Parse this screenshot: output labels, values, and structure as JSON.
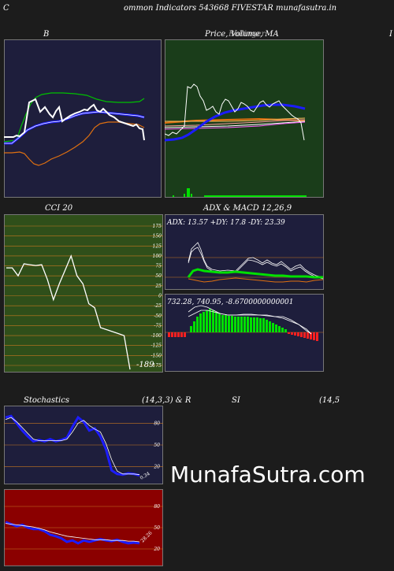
{
  "header": {
    "left_char": "C",
    "title": "ommon  Indicators 543668 FIVESTAR munafasutra.in"
  },
  "labels": {
    "b": "B",
    "price": "Price,  Volume,  MA",
    "price_overlap": "Bollinger",
    "right_edge": "I",
    "cci": "CCI 20",
    "adx": "ADX  & MACD 12,26,9",
    "adx_values": "ADX: 13.57  +DY: 17.8  -DY: 23.39",
    "macd_values": "732.28,  740.95,  -8.6700000000001",
    "stoch_left": "Stochastics",
    "stoch_params": "(14,3,3) & R",
    "si": "SI",
    "si_params": "(14,5",
    "cci_value": "-189",
    "stoch_value": "0.34",
    "rsi_value": "28.26"
  },
  "watermark": "MunafaSutra.com",
  "colors": {
    "bg": "#1c1c1c",
    "navy": "#1e1e3c",
    "green": "#1a3d1a",
    "olive": "#2f4f1a",
    "maroon": "#8b0000",
    "grid": "#c87820",
    "white": "#ffffff",
    "blue": "#1c1cff",
    "lime": "#00e000",
    "orange": "#e07010"
  },
  "chart_data": [
    {
      "type": "line",
      "title": "B",
      "series": [
        {
          "values": [
            8,
            8,
            8,
            7.2,
            6.8,
            6.0,
            5.2,
            4.8,
            4.5,
            4.0,
            4.4,
            4.7,
            4.3,
            4.1,
            4.0,
            3.9,
            3.7,
            3.3,
            3.2,
            3.0,
            3.1,
            3.3,
            3.5,
            3.6,
            4.0,
            4.3,
            4.0,
            4.4,
            4.6,
            4.5,
            4.7,
            4.8,
            4.8,
            5.1,
            5.3,
            5.6,
            6.0,
            6.3
          ]
        },
        {
          "values": [
            8,
            8,
            8,
            7.2,
            6.8,
            6.0,
            5.2,
            4.8,
            4.5,
            4.0,
            4.4,
            4.7,
            4.3,
            4.1,
            4.0,
            3.9,
            3.7,
            3.3,
            3.2,
            3.0,
            3.1,
            3.3,
            3.5,
            3.6,
            4.0,
            4.3,
            4.0,
            4.4,
            4.6,
            4.5,
            4.7,
            4.8,
            4.8,
            5.1,
            5.3,
            5.6,
            6.0,
            6.3
          ]
        },
        {
          "values": [
            7.2,
            7.3,
            7.3,
            6.2,
            5.2,
            4.2,
            3.2,
            2.6,
            2.4,
            2.2,
            2.0,
            1.9,
            2.0,
            2.1,
            2.2,
            2.3,
            2.4,
            2.6,
            2.7,
            2.8,
            2.8,
            2.9,
            3.0,
            3.0,
            3.0,
            2.9,
            2.9,
            2.8,
            2.8,
            2.8,
            2.8,
            2.8,
            2.8,
            2.7,
            2.7,
            2.6,
            2.6,
            2.5
          ]
        }
      ]
    },
    {
      "type": "line",
      "title": "Price,  Volume,  MA",
      "series": [
        {
          "values": [
            7.0,
            7.2,
            6.8,
            6.5,
            6.3,
            5.9,
            5.6,
            5.3,
            5.1,
            2.0,
            2.1,
            2.0,
            3.3,
            2.8,
            3.4,
            2.5,
            3.1,
            3.2,
            3.3,
            3.0,
            3.3,
            3.8,
            3.4,
            4.5,
            4.1,
            3.8,
            4.4,
            4.4,
            4.6,
            4.4,
            4.0,
            3.8,
            3.6,
            5.6
          ]
        },
        {
          "values": [
            5.6,
            5.6,
            5.6,
            5.5,
            5.5,
            5.5,
            5.4,
            5.4,
            5.4,
            5.3,
            5.3,
            5.3,
            5.2,
            5.2,
            5.2,
            5.1,
            5.1,
            5.0,
            5.0,
            5.0,
            4.9,
            4.9,
            4.9,
            4.8,
            4.8,
            4.8,
            4.7,
            4.7,
            4.7,
            4.6,
            4.6,
            4.6,
            4.5,
            4.5
          ]
        }
      ]
    },
    {
      "type": "line",
      "title": "CCI 20",
      "ylim": [
        -175,
        175
      ],
      "y_ticks": [
        175,
        150,
        125,
        100,
        75,
        50,
        25,
        0,
        -25,
        -50,
        -75,
        -100,
        -125,
        -150,
        -175
      ],
      "series": [
        {
          "values": [
            70,
            70,
            50,
            80,
            78,
            76,
            78,
            40,
            -10,
            30,
            65,
            100,
            50,
            30,
            -20,
            -30,
            -80,
            -85,
            -90,
            -95,
            -100,
            -185
          ]
        }
      ]
    },
    {
      "type": "line",
      "title": "ADX  & MACD 12,26,9",
      "series": [
        {
          "name": "ADX",
          "values": [
            13,
            14,
            14,
            15,
            14,
            14,
            14,
            14,
            13,
            13.57
          ]
        },
        {
          "name": "+DY",
          "values": [
            17,
            17,
            20,
            18,
            17,
            18,
            17,
            18,
            17,
            17.8
          ]
        },
        {
          "name": "-DY",
          "values": [
            23,
            22,
            21,
            22,
            23,
            22,
            24,
            22,
            23,
            23.39
          ]
        },
        {
          "name": "MACD",
          "values": [
            732.28
          ]
        },
        {
          "name": "Signal",
          "values": [
            740.95
          ]
        },
        {
          "name": "Histogram",
          "values": [
            -8.67
          ]
        }
      ]
    },
    {
      "type": "line",
      "title": "Stochastics",
      "ylim": [
        0,
        100
      ],
      "y_ticks": [
        80,
        50,
        20
      ],
      "series": [
        {
          "values": [
            88,
            90,
            80,
            70,
            62,
            55,
            57,
            55,
            58,
            55,
            57,
            60,
            75,
            88,
            82,
            70,
            73,
            62,
            44,
            15,
            10,
            9,
            11,
            10,
            8
          ]
        },
        {
          "values": [
            85,
            88,
            82,
            74,
            66,
            58,
            56,
            56,
            56,
            56,
            56,
            58,
            68,
            80,
            84,
            77,
            72,
            68,
            52,
            30,
            14,
            10,
            10,
            10,
            9
          ]
        }
      ]
    },
    {
      "type": "line",
      "title": "SI",
      "ylim": [
        0,
        100
      ],
      "y_ticks": [
        80,
        50,
        20
      ],
      "series": [
        {
          "values": [
            58,
            55,
            52,
            54,
            50,
            48,
            48,
            45,
            40,
            38,
            35,
            30,
            32,
            28,
            32,
            30,
            32,
            34,
            32,
            31,
            33,
            30,
            28,
            29,
            28
          ]
        },
        {
          "values": [
            56,
            55,
            54,
            53,
            52,
            51,
            49,
            47,
            44,
            42,
            40,
            38,
            37,
            36,
            35,
            34,
            33,
            33,
            33,
            32,
            32,
            32,
            31,
            31,
            30
          ]
        }
      ]
    }
  ]
}
